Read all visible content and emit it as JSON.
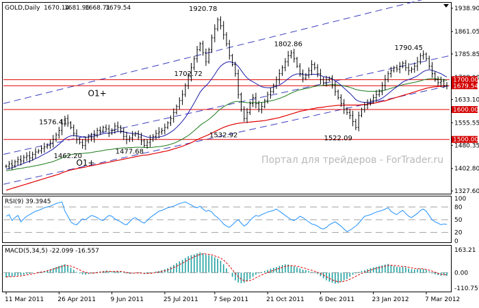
{
  "chart_data": {
    "type": "line",
    "header": {
      "symbol_tf": "GOLD,Daily",
      "ohlc": [
        "1670.14",
        "1681.96",
        "1668.71",
        "1679.54"
      ]
    },
    "x_axis": {
      "labels": [
        "11 Mar 2011",
        "26 Apr 2011",
        "9 Jun 2011",
        "25 Jul 2011",
        "7 Sep 2011",
        "21 Oct 2011",
        "6 Dec 2011",
        "23 Jan 2012",
        "7 Mar 2012"
      ]
    },
    "price_pane": {
      "y_ticks": [
        "1938.90",
        "1861.05",
        "1785.85",
        "1708.00",
        "1633.10",
        "1555.55",
        "1480.35",
        "1402.80",
        "1327.60"
      ],
      "ylim": [
        1327.6,
        1938.9
      ],
      "close": [
        1410,
        1418,
        1412,
        1425,
        1432,
        1428,
        1440,
        1445,
        1438,
        1450,
        1458,
        1462,
        1470,
        1475,
        1480,
        1488,
        1500,
        1515,
        1530,
        1552,
        1570,
        1555,
        1540,
        1520,
        1500,
        1490,
        1480,
        1495,
        1510,
        1505,
        1515,
        1530,
        1528,
        1540,
        1535,
        1522,
        1530,
        1545,
        1540,
        1528,
        1510,
        1500,
        1505,
        1515,
        1520,
        1508,
        1495,
        1480,
        1490,
        1500,
        1510,
        1520,
        1525,
        1530,
        1540,
        1555,
        1570,
        1590,
        1610,
        1630,
        1650,
        1680,
        1710,
        1740,
        1770,
        1800,
        1820,
        1790,
        1760,
        1800,
        1840,
        1870,
        1900,
        1880,
        1850,
        1820,
        1780,
        1750,
        1720,
        1650,
        1600,
        1570,
        1590,
        1620,
        1640,
        1620,
        1600,
        1610,
        1630,
        1650,
        1660,
        1680,
        1700,
        1720,
        1740,
        1760,
        1780,
        1790,
        1770,
        1745,
        1720,
        1705,
        1715,
        1730,
        1750,
        1740,
        1720,
        1700,
        1690,
        1700,
        1705,
        1680,
        1660,
        1640,
        1620,
        1600,
        1590,
        1580,
        1560,
        1540,
        1580,
        1600,
        1615,
        1620,
        1630,
        1640,
        1650,
        1660,
        1680,
        1700,
        1720,
        1730,
        1740,
        1735,
        1745,
        1755,
        1740,
        1730,
        1735,
        1745,
        1760,
        1780,
        1785,
        1770,
        1745,
        1720,
        1700,
        1690,
        1695,
        1680,
        1679.54
      ],
      "ma_fast": [
        1400,
        1403,
        1405,
        1409,
        1413,
        1416,
        1420,
        1424,
        1427,
        1431,
        1436,
        1440,
        1446,
        1451,
        1456,
        1462,
        1468,
        1476,
        1484,
        1493,
        1502,
        1508,
        1512,
        1513,
        1512,
        1510,
        1508,
        1507,
        1508,
        1509,
        1511,
        1514,
        1516,
        1519,
        1521,
        1521,
        1522,
        1524,
        1526,
        1526,
        1525,
        1523,
        1521,
        1520,
        1520,
        1518,
        1515,
        1511,
        1508,
        1507,
        1506,
        1507,
        1508,
        1510,
        1513,
        1518,
        1524,
        1531,
        1540,
        1550,
        1561,
        1574,
        1589,
        1605,
        1622,
        1640,
        1658,
        1670,
        1679,
        1690,
        1703,
        1717,
        1733,
        1745,
        1753,
        1758,
        1760,
        1758,
        1754,
        1744,
        1731,
        1717,
        1706,
        1698,
        1693,
        1687,
        1681,
        1676,
        1674,
        1673,
        1673,
        1675,
        1678,
        1682,
        1688,
        1695,
        1703,
        1711,
        1716,
        1719,
        1719,
        1717,
        1716,
        1716,
        1718,
        1718,
        1717,
        1714,
        1710,
        1708,
        1706,
        1702,
        1696,
        1689,
        1681,
        1672,
        1663,
        1654,
        1644,
        1633,
        1628,
        1625,
        1624,
        1624,
        1625,
        1627,
        1630,
        1633,
        1638,
        1645,
        1653,
        1661,
        1669,
        1676,
        1684,
        1692,
        1697,
        1700,
        1704,
        1708,
        1713,
        1720,
        1727,
        1731,
        1733,
        1731,
        1728,
        1724,
        1720,
        1714,
        1709
      ],
      "ma_mid": [
        1395,
        1397,
        1398,
        1400,
        1402,
        1403,
        1405,
        1407,
        1408,
        1410,
        1412,
        1414,
        1416,
        1418,
        1421,
        1423,
        1426,
        1430,
        1434,
        1438,
        1443,
        1447,
        1449,
        1451,
        1452,
        1453,
        1453,
        1454,
        1455,
        1456,
        1458,
        1460,
        1461,
        1463,
        1465,
        1466,
        1467,
        1469,
        1470,
        1471,
        1472,
        1472,
        1473,
        1473,
        1474,
        1474,
        1474,
        1473,
        1473,
        1473,
        1474,
        1475,
        1476,
        1477,
        1479,
        1481,
        1484,
        1487,
        1491,
        1496,
        1501,
        1507,
        1513,
        1521,
        1529,
        1538,
        1547,
        1554,
        1560,
        1567,
        1575,
        1584,
        1594,
        1602,
        1609,
        1615,
        1620,
        1624,
        1627,
        1627,
        1626,
        1624,
        1623,
        1623,
        1623,
        1623,
        1623,
        1624,
        1625,
        1627,
        1629,
        1631,
        1634,
        1637,
        1641,
        1645,
        1650,
        1655,
        1659,
        1663,
        1666,
        1668,
        1670,
        1672,
        1675,
        1677,
        1679,
        1680,
        1681,
        1682,
        1683,
        1683,
        1683,
        1682,
        1681,
        1679,
        1677,
        1674,
        1671,
        1667,
        1665,
        1663,
        1662,
        1661,
        1661,
        1661,
        1661,
        1662,
        1663,
        1665,
        1668,
        1671,
        1674,
        1677,
        1680,
        1683,
        1685,
        1687,
        1689,
        1691,
        1693,
        1696,
        1699,
        1701,
        1703,
        1703,
        1703,
        1702,
        1701,
        1699,
        1698
      ],
      "ma_slow": [
        1330,
        1333,
        1336,
        1339,
        1342,
        1345,
        1348,
        1351,
        1354,
        1357,
        1360,
        1363,
        1366,
        1369,
        1372,
        1375,
        1378,
        1381,
        1384,
        1388,
        1392,
        1395,
        1398,
        1400,
        1402,
        1404,
        1406,
        1408,
        1410,
        1412,
        1414,
        1416,
        1418,
        1420,
        1422,
        1424,
        1426,
        1428,
        1430,
        1432,
        1434,
        1436,
        1438,
        1440,
        1442,
        1444,
        1446,
        1447,
        1448,
        1450,
        1452,
        1454,
        1456,
        1458,
        1460,
        1462,
        1465,
        1468,
        1471,
        1474,
        1477,
        1481,
        1485,
        1489,
        1494,
        1499,
        1504,
        1508,
        1512,
        1516,
        1521,
        1526,
        1531,
        1536,
        1540,
        1544,
        1547,
        1550,
        1552,
        1554,
        1555,
        1556,
        1557,
        1558,
        1559,
        1560,
        1561,
        1562,
        1563,
        1565,
        1567,
        1569,
        1571,
        1573,
        1576,
        1579,
        1582,
        1585,
        1588,
        1591,
        1594,
        1596,
        1598,
        1600,
        1602,
        1604,
        1606,
        1607,
        1608,
        1610,
        1611,
        1612,
        1613,
        1614,
        1614,
        1615,
        1615,
        1615,
        1615,
        1615,
        1615,
        1616,
        1617,
        1618,
        1619,
        1621,
        1623,
        1625,
        1627,
        1629,
        1632,
        1635,
        1638,
        1641,
        1644,
        1647,
        1650,
        1653,
        1656,
        1659,
        1662,
        1665,
        1668,
        1671,
        1673,
        1675,
        1676,
        1677,
        1678,
        1679,
        1680
      ],
      "hlines": [
        {
          "level": 1700.0,
          "label": "1700.00",
          "tag": true
        },
        {
          "level": 1679.54,
          "label": "1679.54",
          "tag": true
        },
        {
          "level": 1600.0,
          "label": "1600.00",
          "tag": true
        },
        {
          "level": 1500.0,
          "label": "1500.00",
          "tag": true
        }
      ],
      "annotations": [
        {
          "index": 67,
          "price": 1920.78,
          "text": "1920.78"
        },
        {
          "index": 96,
          "price": 1802.86,
          "text": "1802.86"
        },
        {
          "index": 137,
          "price": 1790.45,
          "text": "1790.45"
        },
        {
          "index": 62,
          "price": 1702.72,
          "text": "1702.72"
        },
        {
          "index": 16,
          "price": 1576.41,
          "text": "1576.41"
        },
        {
          "index": 21,
          "price": 1462.2,
          "text": "1462.20"
        },
        {
          "index": 42,
          "price": 1477.68,
          "text": "1477.68"
        },
        {
          "index": 74,
          "price": 1532.92,
          "text": "1532.92"
        },
        {
          "index": 113,
          "price": 1522.09,
          "text": "1522.09"
        }
      ],
      "wave_labels": [
        {
          "index": 31,
          "price": 1645,
          "text": "O1+"
        },
        {
          "index": 27,
          "price": 1412,
          "text": "O1+"
        }
      ],
      "channels": [
        {
          "y0": 1620,
          "y1": 1990,
          "color": "#3b3bbf"
        },
        {
          "y0": 1450,
          "y1": 1780,
          "color": "#3b3bbf"
        },
        {
          "y0": 1350,
          "y1": 1680,
          "color": "#3b3bbf"
        }
      ],
      "watermark": "Портал для трейдеров - ForTrader.ru"
    },
    "rsi_pane": {
      "label": "RSI(9) 39.3945",
      "y_ticks": [
        "100",
        "80",
        "50",
        "20",
        "0"
      ],
      "ylim": [
        0,
        100
      ],
      "levels": [
        80,
        50,
        20
      ],
      "values": [
        58,
        62,
        48,
        55,
        60,
        45,
        52,
        58,
        62,
        66,
        70,
        72,
        75,
        78,
        80,
        82,
        85,
        88,
        90,
        92,
        70,
        58,
        45,
        40,
        38,
        45,
        52,
        50,
        55,
        60,
        58,
        55,
        50,
        48,
        55,
        60,
        58,
        52,
        48,
        45,
        40,
        38,
        45,
        52,
        55,
        50,
        45,
        42,
        48,
        55,
        60,
        65,
        70,
        72,
        75,
        78,
        80,
        82,
        85,
        88,
        90,
        92,
        88,
        85,
        80,
        78,
        82,
        75,
        70,
        72,
        68,
        60,
        55,
        48,
        40,
        35,
        32,
        38,
        45,
        50,
        42,
        35,
        40,
        48,
        55,
        60,
        58,
        62,
        65,
        68,
        70,
        72,
        75,
        70,
        65,
        60,
        55,
        50,
        48,
        52,
        58,
        55,
        50,
        45,
        40,
        38,
        35,
        30,
        28,
        32,
        38,
        42,
        45,
        40,
        35,
        28,
        22,
        25,
        30,
        35,
        42,
        50,
        58,
        60,
        62,
        65,
        68,
        70,
        72,
        75,
        78,
        70,
        65,
        62,
        68,
        72,
        65,
        58,
        55,
        60,
        65,
        72,
        75,
        70,
        60,
        50,
        45,
        42,
        38,
        40,
        39
      ]
    },
    "macd_pane": {
      "label": "MACD(5,34,5) -22.099 -16.557",
      "y_ticks": [
        "163.21",
        "0.00",
        "-110.751"
      ],
      "ylim": [
        -110.751,
        163.21
      ],
      "histogram": [
        -35,
        -30,
        -28,
        -25,
        -20,
        -18,
        -15,
        -10,
        -8,
        -5,
        0,
        5,
        8,
        12,
        18,
        25,
        32,
        40,
        48,
        55,
        60,
        50,
        35,
        20,
        5,
        -5,
        -12,
        -15,
        -10,
        -5,
        -2,
        5,
        8,
        12,
        15,
        10,
        8,
        10,
        12,
        8,
        2,
        -5,
        -8,
        -5,
        0,
        -2,
        -5,
        -10,
        -8,
        -4,
        2,
        8,
        12,
        18,
        24,
        32,
        42,
        55,
        68,
        80,
        92,
        105,
        118,
        125,
        130,
        138,
        145,
        140,
        128,
        125,
        120,
        110,
        100,
        85,
        60,
        30,
        0,
        -30,
        -55,
        -70,
        -75,
        -72,
        -60,
        -45,
        -30,
        -15,
        -5,
        5,
        12,
        20,
        28,
        35,
        40,
        48,
        55,
        60,
        58,
        52,
        45,
        38,
        30,
        22,
        18,
        12,
        5,
        -2,
        -10,
        -25,
        -40,
        -55,
        -65,
        -72,
        -78,
        -75,
        -65,
        -55,
        -45,
        -30,
        -15,
        -5,
        5,
        12,
        18,
        25,
        32,
        38,
        42,
        48,
        52,
        58,
        62,
        55,
        48,
        42,
        40,
        42,
        38,
        30,
        25,
        22,
        25,
        28,
        26,
        20,
        10,
        -5,
        -12,
        -18,
        -22,
        -20,
        -22
      ],
      "signal": [
        -30,
        -29,
        -28,
        -27,
        -25,
        -23,
        -20,
        -17,
        -13,
        -9,
        -5,
        0,
        4,
        8,
        13,
        19,
        25,
        31,
        38,
        45,
        51,
        51,
        47,
        40,
        30,
        20,
        10,
        3,
        -2,
        -4,
        -3,
        0,
        3,
        6,
        9,
        10,
        9,
        9,
        10,
        9,
        6,
        2,
        -2,
        -4,
        -3,
        -2,
        -3,
        -5,
        -6,
        -5,
        -3,
        1,
        5,
        9,
        14,
        20,
        27,
        36,
        46,
        57,
        68,
        80,
        92,
        103,
        113,
        122,
        131,
        135,
        134,
        131,
        127,
        120,
        113,
        104,
        90,
        70,
        47,
        21,
        -5,
        -29,
        -47,
        -57,
        -60,
        -56,
        -48,
        -37,
        -26,
        -16,
        -7,
        1,
        9,
        17,
        24,
        31,
        38,
        45,
        49,
        50,
        49,
        46,
        41,
        35,
        29,
        23,
        17,
        10,
        3,
        -6,
        -17,
        -29,
        -41,
        -51,
        -60,
        -65,
        -66,
        -62,
        -56,
        -47,
        -37,
        -26,
        -16,
        -6,
        3,
        11,
        18,
        25,
        31,
        37,
        42,
        47,
        52,
        53,
        52,
        49,
        46,
        45,
        43,
        39,
        34,
        30,
        28,
        28,
        27,
        24,
        19,
        11,
        3,
        -5,
        -11,
        -14,
        -17
      ]
    }
  }
}
